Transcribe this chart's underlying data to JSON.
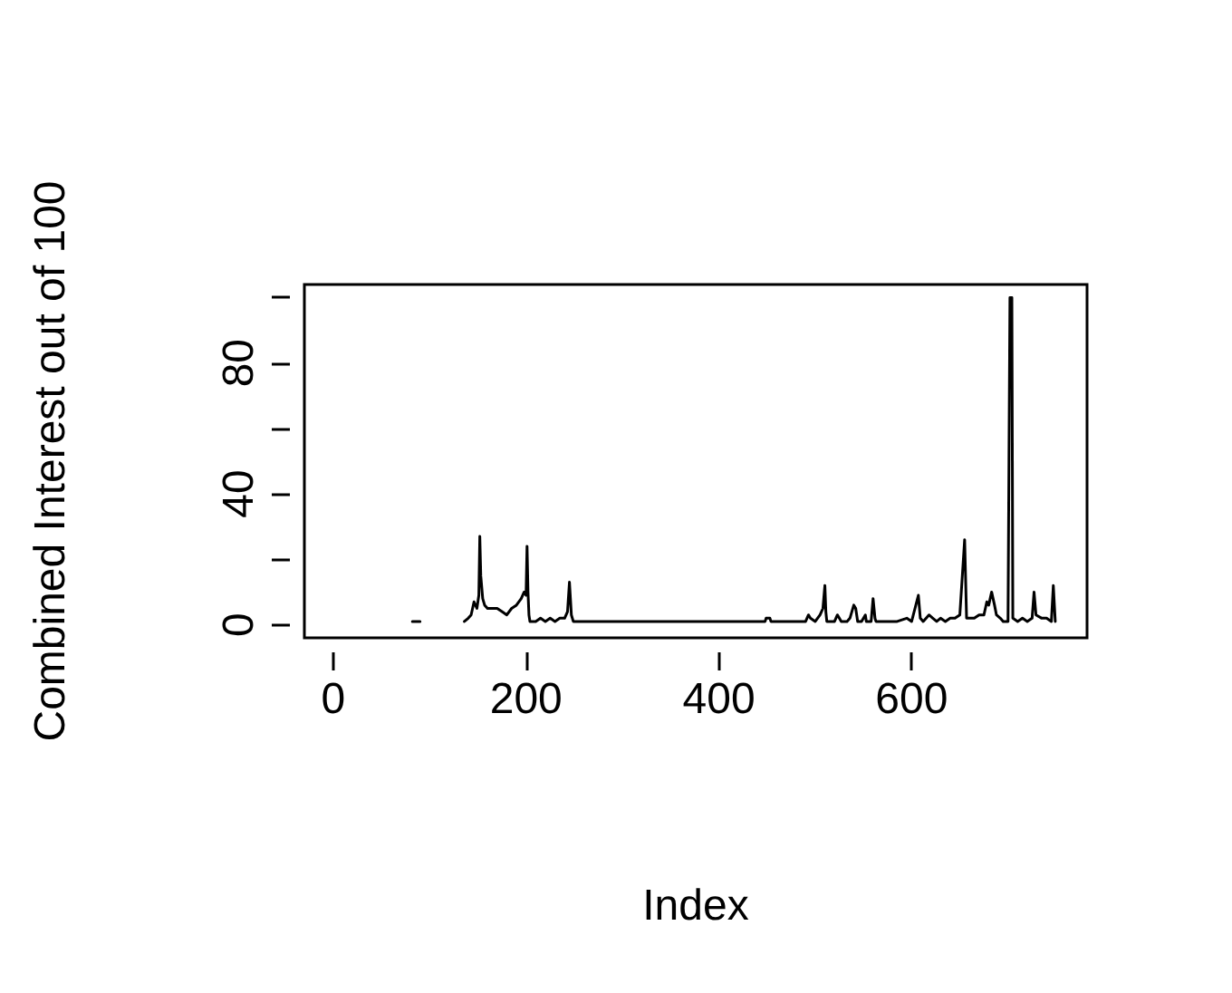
{
  "chart_data": {
    "type": "line",
    "xlabel": "Index",
    "ylabel": "Combined Interest out of 100",
    "line_style": "solid",
    "marker": "none",
    "grid": false,
    "xlim": [
      -30,
      782
    ],
    "ylim": [
      -4,
      104
    ],
    "xticks": [
      0,
      200,
      400,
      600
    ],
    "yticks": [
      0,
      {
        "value": 20,
        "label": null
      },
      40,
      {
        "value": 60,
        "label": null
      },
      80,
      {
        "value": 100,
        "label": null
      }
    ],
    "series": [
      {
        "color": "#000000",
        "x": [
          82,
          90
        ],
        "values": [
          1,
          1
        ]
      },
      {
        "color": "#000000",
        "x": [
          136,
          140,
          143,
          146,
          149,
          151,
          152,
          153,
          155,
          157,
          160,
          165,
          170,
          175,
          180,
          185,
          190,
          195,
          198,
          200,
          201,
          202,
          203,
          204,
          210,
          215,
          220,
          225,
          230,
          235,
          240,
          243,
          245,
          246,
          247,
          249,
          300,
          350,
          380,
          420,
          448,
          449,
          453,
          454,
          490,
          493,
          495,
          500,
          505,
          508,
          510,
          511,
          512,
          517,
          520,
          523,
          525,
          527,
          533,
          536,
          540,
          542,
          544,
          548,
          552,
          553,
          558,
          560,
          562,
          563,
          575,
          585,
          595,
          600,
          607,
          609,
          612,
          618,
          622,
          626,
          630,
          635,
          640,
          645,
          650,
          655,
          657,
          660,
          665,
          670,
          675,
          678,
          680,
          683,
          686,
          688,
          692,
          695,
          700,
          702,
          704,
          705,
          710,
          715,
          720,
          725,
          727,
          729,
          735,
          740,
          745,
          747,
          749
        ],
        "values": [
          1,
          2,
          3,
          7,
          5,
          9,
          27,
          15,
          8,
          6,
          5,
          5,
          5,
          4,
          3,
          5,
          6,
          8,
          10,
          9,
          24,
          10,
          3,
          1,
          1,
          2,
          1,
          2,
          1,
          2,
          2,
          4,
          13,
          8,
          3,
          1,
          1,
          1,
          1,
          1,
          1,
          2,
          2,
          1,
          1,
          3,
          2,
          1,
          3,
          5,
          12,
          4,
          1,
          1,
          1,
          3,
          2,
          1,
          1,
          2,
          6,
          5,
          1,
          1,
          3,
          1,
          1,
          8,
          2,
          1,
          1,
          1,
          2,
          1,
          9,
          2,
          1,
          3,
          2,
          1,
          2,
          1,
          2,
          2,
          3,
          26,
          2,
          2,
          2,
          3,
          3,
          7,
          6,
          10,
          6,
          3,
          2,
          1,
          1,
          100,
          100,
          2,
          1,
          2,
          1,
          2,
          10,
          3,
          2,
          2,
          1,
          12,
          1
        ]
      }
    ]
  }
}
